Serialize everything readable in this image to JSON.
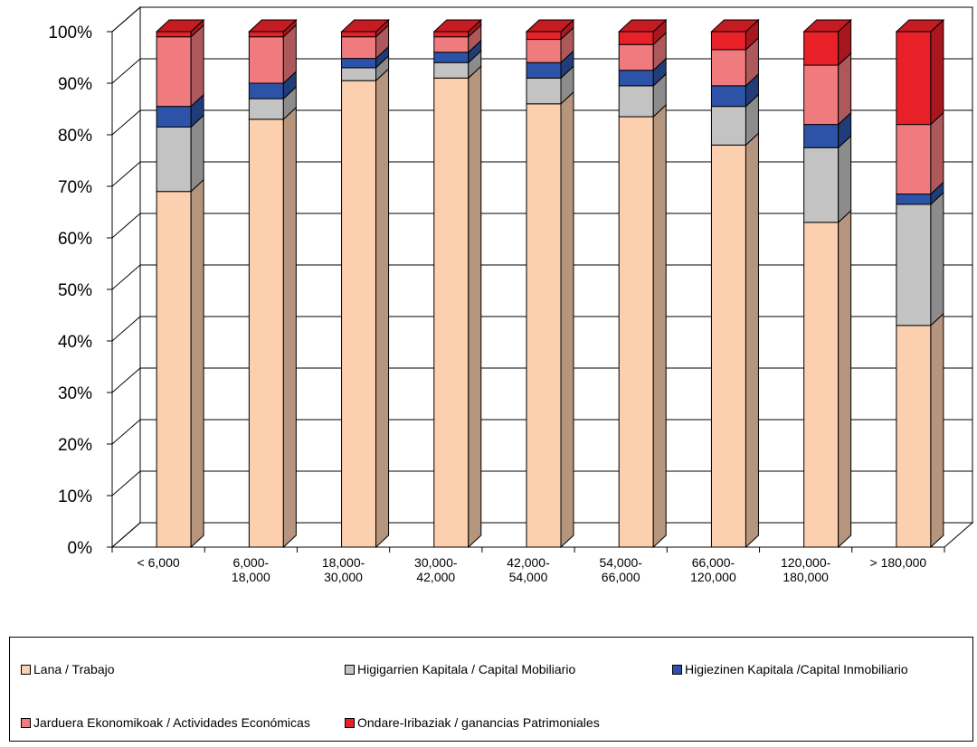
{
  "chart_data": {
    "type": "bar",
    "stacked": "percent",
    "three_d": true,
    "grid": true,
    "legend_position": "bottom",
    "categories": [
      [
        "< 6,000"
      ],
      [
        "6,000-",
        "18,000"
      ],
      [
        "18,000-",
        "30,000"
      ],
      [
        "30,000-",
        "42,000"
      ],
      [
        "42,000-",
        "54,000"
      ],
      [
        "54,000-",
        "66,000"
      ],
      [
        "66,000-",
        "120,000"
      ],
      [
        "120,000-",
        "180,000"
      ],
      [
        "> 180,000"
      ]
    ],
    "y_ticks": [
      "0%",
      "10%",
      "20%",
      "30%",
      "40%",
      "50%",
      "60%",
      "70%",
      "80%",
      "90%",
      "100%"
    ],
    "ylim": [
      0,
      100
    ],
    "series": [
      {
        "name": "Lana / Trabajo",
        "color": "#FCCFAE",
        "values": [
          69,
          83,
          90.5,
          91,
          86,
          83.5,
          78,
          63,
          43
        ]
      },
      {
        "name": "Higigarrien Kapitala / Capital Mobiliario",
        "color": "#C3C3C3",
        "values": [
          12.5,
          4,
          2.5,
          3,
          5,
          6,
          7.5,
          14.5,
          23.5
        ]
      },
      {
        "name": "Higiezinen Kapitala /Capital Inmobiliario",
        "color": "#2D53A8",
        "values": [
          4,
          3,
          1.8,
          2,
          3,
          3,
          4,
          4.5,
          2
        ]
      },
      {
        "name": "Jarduera Ekonomikoak / Actividades Económicas",
        "color": "#F07B7E",
        "values": [
          13.5,
          9,
          4.2,
          3,
          4.5,
          5,
          7,
          11.5,
          13.5
        ]
      },
      {
        "name": "Ondare-Iribaziak / ganancias Patrimoniales",
        "color": "#E82028",
        "values": [
          1,
          1,
          1,
          1,
          1.5,
          2.5,
          3.5,
          6.5,
          18
        ]
      }
    ]
  }
}
